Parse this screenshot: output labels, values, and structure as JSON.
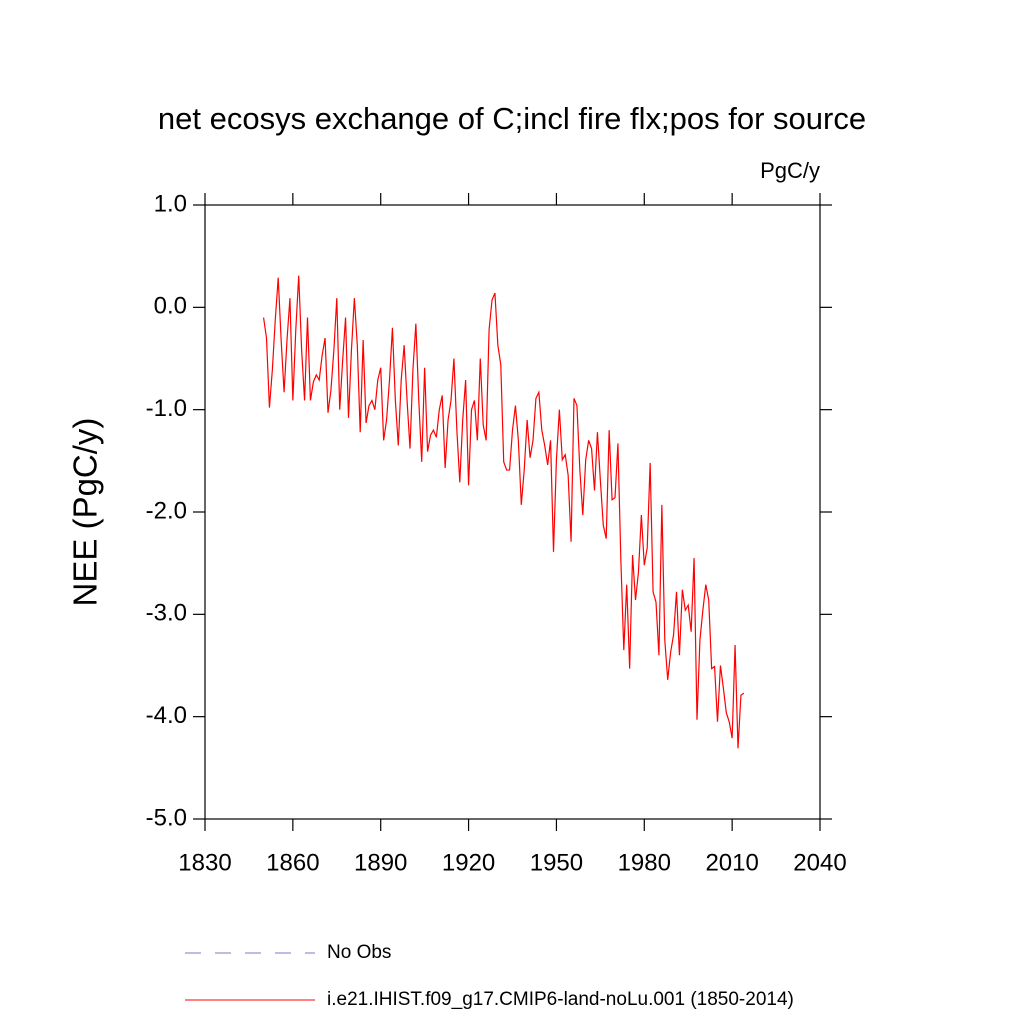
{
  "chart_data": {
    "type": "line",
    "title": "net ecosys exchange of C;incl fire flx;pos for source",
    "units": "PgC/y",
    "y_label": "NEE  (PgC/y)",
    "xlim": [
      1830,
      2040
    ],
    "xticks": [
      1830,
      1860,
      1890,
      1920,
      1950,
      1980,
      2010,
      2040
    ],
    "ylim": [
      -5.0,
      1.0
    ],
    "yticks": [
      {
        "value": 1.0,
        "label": "1.0"
      },
      {
        "value": 0.0,
        "label": "0.0"
      },
      {
        "value": -1.0,
        "label": "-1.0"
      },
      {
        "value": -2.0,
        "label": "-2.0"
      },
      {
        "value": -3.0,
        "label": "-3.0"
      },
      {
        "value": -4.0,
        "label": "-4.0"
      },
      {
        "value": -5.0,
        "label": "-5.0"
      }
    ],
    "obs_legend": {
      "name": "No Obs",
      "color": "#7878c8",
      "dashed": true
    },
    "x": [
      1850,
      1851,
      1852,
      1853,
      1854,
      1855,
      1856,
      1857,
      1858,
      1859,
      1860,
      1861,
      1862,
      1863,
      1864,
      1865,
      1866,
      1867,
      1868,
      1869,
      1870,
      1871,
      1872,
      1873,
      1874,
      1875,
      1876,
      1877,
      1878,
      1879,
      1880,
      1881,
      1882,
      1883,
      1884,
      1885,
      1886,
      1887,
      1888,
      1889,
      1890,
      1891,
      1892,
      1893,
      1894,
      1895,
      1896,
      1897,
      1898,
      1899,
      1900,
      1901,
      1902,
      1903,
      1904,
      1905,
      1906,
      1907,
      1908,
      1909,
      1910,
      1911,
      1912,
      1913,
      1914,
      1915,
      1916,
      1917,
      1918,
      1919,
      1920,
      1921,
      1922,
      1923,
      1924,
      1925,
      1926,
      1927,
      1928,
      1929,
      1930,
      1931,
      1932,
      1933,
      1934,
      1935,
      1936,
      1937,
      1938,
      1939,
      1940,
      1941,
      1942,
      1943,
      1944,
      1945,
      1946,
      1947,
      1948,
      1949,
      1950,
      1951,
      1952,
      1953,
      1954,
      1955,
      1956,
      1957,
      1958,
      1959,
      1960,
      1961,
      1962,
      1963,
      1964,
      1965,
      1966,
      1967,
      1968,
      1969,
      1970,
      1971,
      1972,
      1973,
      1974,
      1975,
      1976,
      1977,
      1978,
      1979,
      1980,
      1981,
      1982,
      1983,
      1984,
      1985,
      1986,
      1987,
      1988,
      1989,
      1990,
      1991,
      1992,
      1993,
      1994,
      1995,
      1996,
      1997,
      1998,
      1999,
      2000,
      2001,
      2002,
      2003,
      2004,
      2005,
      2006,
      2007,
      2008,
      2009,
      2010,
      2011,
      2012,
      2013,
      2014
    ],
    "series": [
      {
        "name": "i.e21.IHIST.f09_g17.CMIP6-land-noLu.001 (1850-2014)",
        "color": "#ff0000",
        "values": [
          -0.1,
          -0.3,
          -0.98,
          -0.61,
          -0.12,
          0.29,
          -0.32,
          -0.83,
          -0.32,
          0.09,
          -0.91,
          -0.22,
          0.31,
          -0.42,
          -0.91,
          -0.1,
          -0.91,
          -0.73,
          -0.66,
          -0.71,
          -0.47,
          -0.3,
          -1.03,
          -0.81,
          -0.42,
          0.09,
          -1.0,
          -0.52,
          -0.1,
          -1.08,
          -0.42,
          0.09,
          -0.37,
          -1.22,
          -0.32,
          -1.13,
          -0.96,
          -0.91,
          -1.0,
          -0.71,
          -0.59,
          -1.3,
          -1.1,
          -0.71,
          -0.2,
          -0.91,
          -1.35,
          -0.71,
          -0.37,
          -0.91,
          -1.38,
          -0.61,
          -0.16,
          -0.91,
          -1.51,
          -0.59,
          -1.41,
          -1.25,
          -1.2,
          -1.27,
          -1.0,
          -0.86,
          -1.57,
          -1.1,
          -0.91,
          -0.5,
          -1.2,
          -1.71,
          -1.1,
          -0.71,
          -1.74,
          -1.0,
          -0.91,
          -1.3,
          -0.5,
          -1.15,
          -1.3,
          -0.22,
          0.07,
          0.14,
          -0.37,
          -0.56,
          -1.51,
          -1.59,
          -1.59,
          -1.2,
          -0.96,
          -1.3,
          -1.93,
          -1.59,
          -1.1,
          -1.47,
          -1.3,
          -0.89,
          -0.83,
          -1.2,
          -1.35,
          -1.54,
          -1.3,
          -2.39,
          -1.49,
          -1.0,
          -1.49,
          -1.44,
          -1.64,
          -2.29,
          -0.89,
          -0.96,
          -1.59,
          -2.03,
          -1.49,
          -1.3,
          -1.38,
          -1.79,
          -1.22,
          -1.69,
          -2.13,
          -2.26,
          -1.2,
          -1.88,
          -1.86,
          -1.33,
          -2.47,
          -3.35,
          -2.71,
          -3.53,
          -2.42,
          -2.86,
          -2.59,
          -2.03,
          -2.52,
          -2.35,
          -1.52,
          -2.78,
          -2.88,
          -3.4,
          -1.93,
          -3.25,
          -3.64,
          -3.37,
          -3.2,
          -2.78,
          -3.4,
          -2.76,
          -2.96,
          -2.91,
          -3.17,
          -2.45,
          -4.03,
          -3.25,
          -2.96,
          -2.71,
          -2.86,
          -3.53,
          -3.51,
          -4.05,
          -3.5,
          -3.72,
          -3.96,
          -4.05,
          -4.21,
          -3.3,
          -4.31,
          -3.79,
          -3.77
        ]
      }
    ]
  }
}
